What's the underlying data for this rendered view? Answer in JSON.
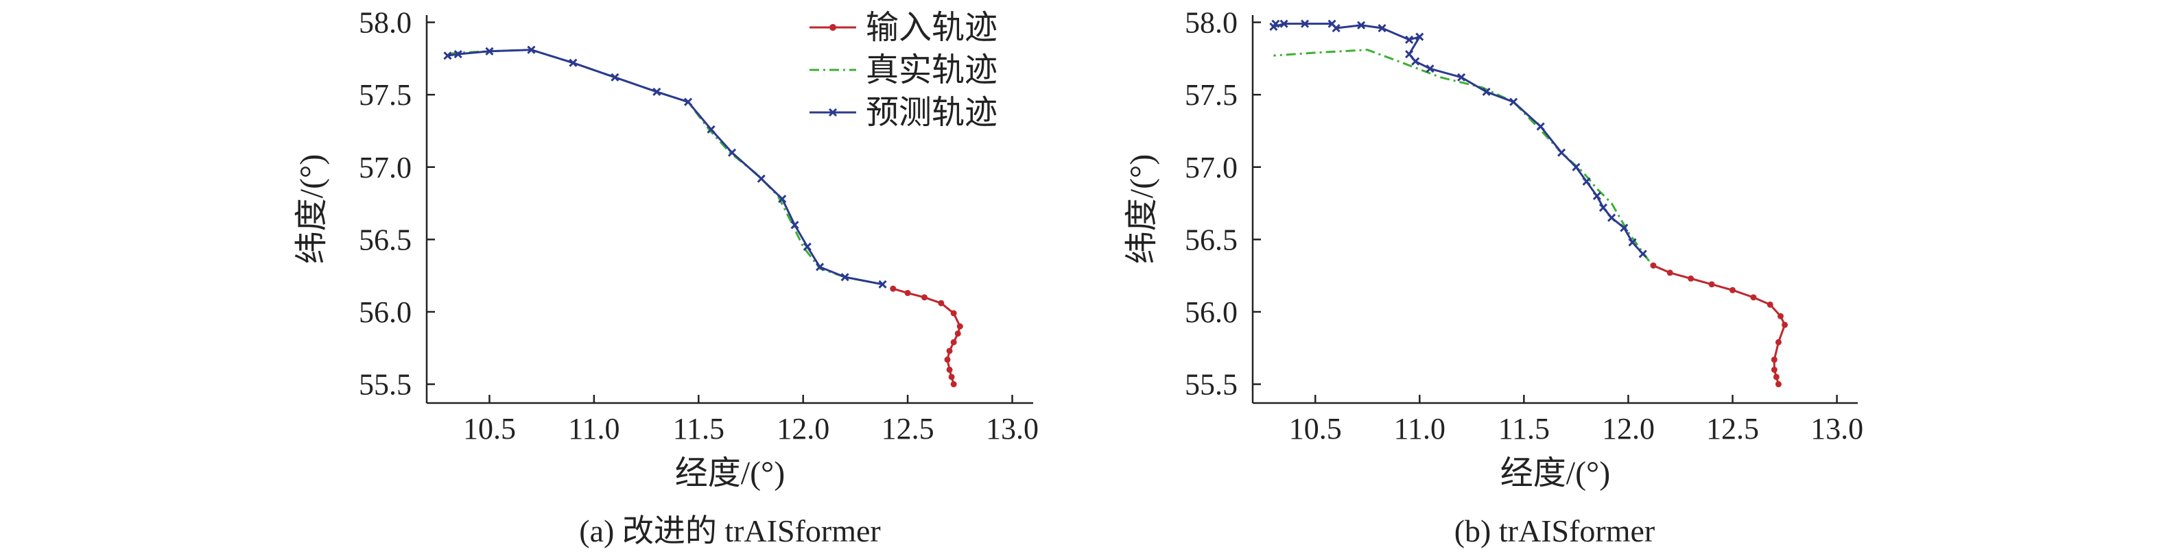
{
  "chart_data": [
    {
      "type": "line",
      "caption": "(a) 改进的 trAISformer",
      "xlabel": "经度/(°)",
      "ylabel": "纬度/(°)",
      "xlim": [
        10.2,
        13.1
      ],
      "ylim": [
        55.37,
        58.05
      ],
      "xticks": [
        "10.5",
        "11.0",
        "11.5",
        "12.0",
        "12.5",
        "13.0"
      ],
      "yticks": [
        "55.5",
        "56.0",
        "56.5",
        "57.0",
        "57.5",
        "58.0"
      ],
      "legend": {
        "position": "top-right",
        "entries": [
          "输入轨迹",
          "真实轨迹",
          "预测轨迹"
        ]
      },
      "series": [
        {
          "name": "输入轨迹",
          "color": "#c0272d",
          "style": "solid",
          "marker": "dot",
          "x": [
            12.72,
            12.71,
            12.7,
            12.69,
            12.7,
            12.72,
            12.74,
            12.75,
            12.72,
            12.66,
            12.58,
            12.5,
            12.43
          ],
          "y": [
            55.5,
            55.55,
            55.6,
            55.67,
            55.73,
            55.79,
            55.85,
            55.9,
            55.99,
            56.06,
            56.1,
            56.13,
            56.16
          ]
        },
        {
          "name": "真实轨迹",
          "color": "#3cb034",
          "style": "dashdot",
          "marker": "none",
          "x": [
            12.38,
            12.2,
            12.08,
            12.0,
            11.95,
            11.88,
            11.78,
            11.65,
            11.55,
            11.45,
            11.3,
            11.1,
            10.9,
            10.7,
            10.5,
            10.35,
            10.3
          ],
          "y": [
            56.19,
            56.24,
            56.3,
            56.45,
            56.6,
            56.8,
            56.95,
            57.1,
            57.26,
            57.45,
            57.52,
            57.62,
            57.72,
            57.81,
            57.8,
            57.79,
            57.78
          ]
        },
        {
          "name": "预测轨迹",
          "color": "#2b3a8f",
          "style": "solid",
          "marker": "x",
          "x": [
            12.38,
            12.2,
            12.08,
            12.02,
            11.96,
            11.9,
            11.8,
            11.66,
            11.56,
            11.45,
            11.3,
            11.1,
            10.9,
            10.7,
            10.5,
            10.35,
            10.3
          ],
          "y": [
            56.19,
            56.24,
            56.31,
            56.45,
            56.6,
            56.78,
            56.92,
            57.1,
            57.26,
            57.45,
            57.52,
            57.62,
            57.72,
            57.81,
            57.8,
            57.78,
            57.77
          ]
        }
      ]
    },
    {
      "type": "line",
      "caption": "(b) trAISformer",
      "xlabel": "经度/(°)",
      "ylabel": "纬度/(°)",
      "xlim": [
        10.2,
        13.1
      ],
      "ylim": [
        55.37,
        58.05
      ],
      "xticks": [
        "10.5",
        "11.0",
        "11.5",
        "12.0",
        "12.5",
        "13.0"
      ],
      "yticks": [
        "55.5",
        "56.0",
        "56.5",
        "57.0",
        "57.5",
        "58.0"
      ],
      "series": [
        {
          "name": "输入轨迹",
          "color": "#c0272d",
          "style": "solid",
          "marker": "dot",
          "x": [
            12.72,
            12.71,
            12.7,
            12.7,
            12.72,
            12.75,
            12.73,
            12.68,
            12.6,
            12.5,
            12.4,
            12.3,
            12.2,
            12.12
          ],
          "y": [
            55.5,
            55.55,
            55.6,
            55.67,
            55.79,
            55.91,
            55.97,
            56.05,
            56.1,
            56.15,
            56.19,
            56.23,
            56.27,
            56.32
          ]
        },
        {
          "name": "真实轨迹",
          "color": "#3cb034",
          "style": "dashdot",
          "marker": "none",
          "x": [
            12.1,
            12.0,
            11.92,
            11.85,
            11.78,
            11.68,
            11.57,
            11.45,
            11.3,
            11.1,
            10.9,
            10.75,
            10.5,
            10.3
          ],
          "y": [
            56.35,
            56.55,
            56.75,
            56.85,
            56.97,
            57.1,
            57.27,
            57.45,
            57.55,
            57.62,
            57.73,
            57.81,
            57.79,
            57.77
          ]
        },
        {
          "name": "预测轨迹",
          "color": "#2b3a8f",
          "style": "solid",
          "marker": "x",
          "x": [
            12.07,
            12.02,
            11.98,
            11.92,
            11.88,
            11.85,
            11.8,
            11.75,
            11.68,
            11.58,
            11.45,
            11.32,
            11.2,
            11.05,
            10.98,
            10.95,
            11.0,
            10.95,
            10.82,
            10.72,
            10.6,
            10.58,
            10.45,
            10.35,
            10.3,
            10.31
          ],
          "y": [
            56.4,
            56.48,
            56.58,
            56.65,
            56.72,
            56.8,
            56.9,
            57.0,
            57.1,
            57.28,
            57.45,
            57.52,
            57.62,
            57.68,
            57.73,
            57.78,
            57.9,
            57.88,
            57.96,
            57.98,
            57.96,
            57.99,
            57.99,
            57.99,
            57.97,
            57.99
          ]
        }
      ]
    }
  ]
}
